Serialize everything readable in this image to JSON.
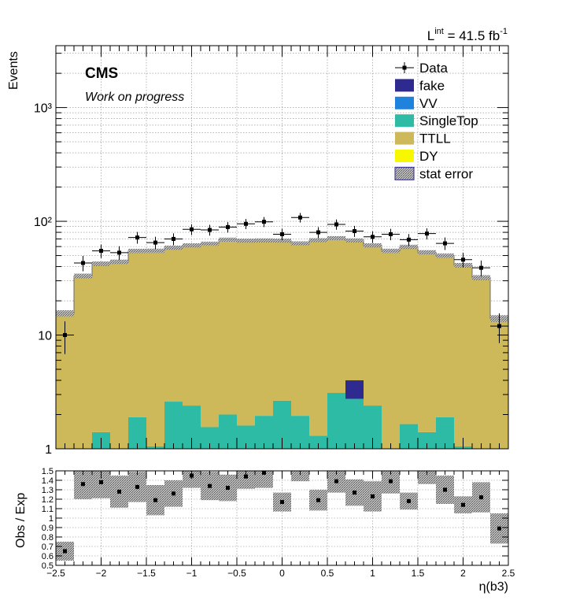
{
  "lumi": {
    "prefix": "L",
    "sup": "int",
    "mid": " = 41.5 fb",
    "sup2": "-1"
  },
  "cms_label": "CMS",
  "cms_sublabel": "Work on progress",
  "ylabel_top": "Events",
  "ylabel_bottom": "Obs / Exp",
  "xlabel": "η(b3)",
  "legend": [
    {
      "label": "Data",
      "kind": "marker",
      "color": "#000000"
    },
    {
      "label": "fake",
      "kind": "box",
      "color": "#2e2a8f"
    },
    {
      "label": "VV",
      "kind": "box",
      "color": "#1f82dc"
    },
    {
      "label": "SingleTop",
      "kind": "box",
      "color": "#2ebba6"
    },
    {
      "label": "TTLL",
      "kind": "box",
      "color": "#cdb95a"
    },
    {
      "label": "DY",
      "kind": "box",
      "color": "#f7f700"
    },
    {
      "label": "stat error",
      "kind": "hatch",
      "color": "#777777"
    }
  ],
  "top_y_ticks": [
    "1",
    "10",
    "10²",
    "10³"
  ],
  "x_ticks": [
    "−2.5",
    "−2",
    "−1.5",
    "−1",
    "−0.5",
    "0",
    "0.5",
    "1",
    "1.5",
    "2",
    "2.5"
  ],
  "ratio_y_ticks": [
    "0.5",
    "0.6",
    "0.7",
    "0.8",
    "0.9",
    "1",
    "1.1",
    "1.2",
    "1.3",
    "1.4",
    "1.5"
  ],
  "chart_data": {
    "type": "bar",
    "stacked": true,
    "y_scale": "log",
    "ylim": [
      1,
      3500
    ],
    "xlim": [
      -2.5,
      2.5
    ],
    "bin_edges": [
      -2.5,
      -2.3,
      -2.1,
      -1.9,
      -1.7,
      -1.5,
      -1.3,
      -1.1,
      -0.9,
      -0.7,
      -0.5,
      -0.3,
      -0.1,
      0.1,
      0.3,
      0.5,
      0.7,
      0.9,
      1.1,
      1.3,
      1.5,
      1.7,
      1.9,
      2.1,
      2.3,
      2.5
    ],
    "bin_centers": [
      -2.4,
      -2.2,
      -2.0,
      -1.8,
      -1.6,
      -1.4,
      -1.2,
      -1.0,
      -0.8,
      -0.6,
      -0.4,
      -0.2,
      0.0,
      0.2,
      0.4,
      0.6,
      0.8,
      1.0,
      1.2,
      1.4,
      1.6,
      1.8,
      2.0,
      2.2,
      2.4
    ],
    "series": [
      {
        "name": "SingleTop",
        "values": [
          0,
          0,
          1.4,
          0,
          1.9,
          1.05,
          2.6,
          2.4,
          1.55,
          2.0,
          1.6,
          1.95,
          2.65,
          1.95,
          1.3,
          3.1,
          2.75,
          2.4,
          0,
          1.65,
          1.4,
          1.9,
          1.05,
          0,
          0
        ]
      },
      {
        "name": "fake",
        "values": [
          0,
          0,
          0,
          0,
          0,
          0,
          0,
          0,
          0,
          0,
          0,
          0,
          0,
          0,
          0,
          0,
          1.25,
          0,
          0,
          0,
          0,
          0,
          0,
          0,
          0
        ]
      },
      {
        "name": "TTLL",
        "values": [
          15.5,
          33,
          41,
          44,
          53,
          54,
          56,
          59,
          62,
          67,
          66,
          66,
          65,
          62,
          67,
          68,
          64,
          59,
          55,
          58,
          52,
          48,
          40,
          32,
          14
        ]
      }
    ],
    "data": {
      "name": "Data",
      "values": [
        10,
        43,
        55,
        53,
        72,
        65,
        70,
        85,
        84,
        89,
        95,
        99,
        77,
        108,
        80,
        94,
        82,
        73,
        77,
        69,
        78,
        64,
        46,
        39,
        12
      ],
      "errors": [
        3.2,
        6.6,
        7.4,
        7.3,
        8.5,
        8.1,
        8.4,
        9.2,
        9.2,
        9.4,
        9.7,
        10.0,
        8.8,
        10.4,
        8.9,
        9.7,
        9.1,
        8.5,
        8.8,
        8.3,
        8.8,
        8.0,
        6.8,
        6.2,
        3.5
      ]
    },
    "ratio": {
      "ylabel": "Obs / Exp",
      "ylim": [
        0.5,
        1.5
      ],
      "values": [
        0.65,
        1.36,
        1.38,
        1.28,
        1.33,
        1.19,
        1.26,
        1.45,
        1.34,
        1.32,
        1.44,
        1.48,
        1.17,
        1.55,
        1.19,
        1.39,
        1.27,
        1.23,
        1.39,
        1.18,
        1.52,
        1.3,
        1.14,
        1.22,
        0.89
      ],
      "band_half_widths": [
        0.1,
        0.16,
        0.17,
        0.17,
        0.16,
        0.16,
        0.14,
        0.13,
        0.15,
        0.14,
        0.13,
        0.16,
        0.1,
        0.16,
        0.11,
        0.12,
        0.14,
        0.16,
        0.13,
        0.09,
        0.16,
        0.15,
        0.09,
        0.16,
        0.16
      ]
    }
  }
}
